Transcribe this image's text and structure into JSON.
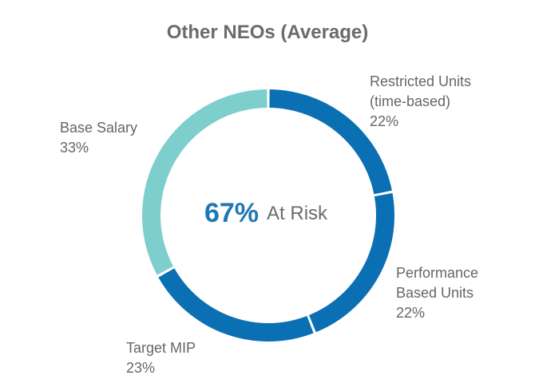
{
  "chart_data": {
    "type": "pie",
    "title": "Other NEOs (Average)",
    "center": {
      "value": "67%",
      "text": "At Risk"
    },
    "slices": [
      {
        "name": "Restricted Units (time-based)",
        "label_lines": [
          "Restricted Units",
          "(time-based)"
        ],
        "value": 22,
        "value_label": "22%",
        "color": "#0b6fb3"
      },
      {
        "name": "Performance Based Units",
        "label_lines": [
          "Performance",
          "Based Units"
        ],
        "value": 22,
        "value_label": "22%",
        "color": "#0b6fb3"
      },
      {
        "name": "Target MIP",
        "label_lines": [
          "Target MIP"
        ],
        "value": 23,
        "value_label": "23%",
        "color": "#0b6fb3"
      },
      {
        "name": "Base Salary",
        "label_lines": [
          "Base Salary"
        ],
        "value": 33,
        "value_label": "33%",
        "color": "#7ecece"
      }
    ]
  }
}
